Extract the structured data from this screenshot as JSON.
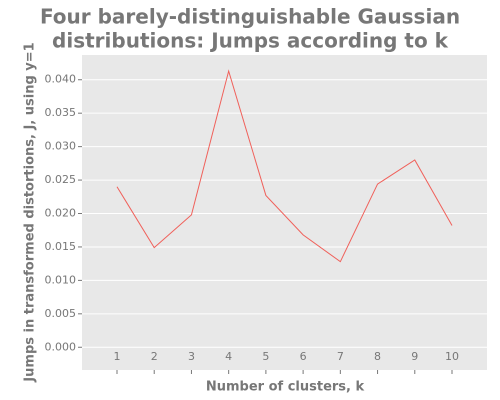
{
  "chart_data": {
    "type": "line",
    "title": [
      "Four barely-distinguishable Gaussian",
      "distributions: Jumps according to k"
    ],
    "x_label": "Number of clusters, k",
    "y_label": "Jumps in transformed distortions, J, using y=1",
    "x": [
      1,
      2,
      3,
      4,
      5,
      6,
      7,
      8,
      9,
      10
    ],
    "series": [
      {
        "color": "#f0605a",
        "values": [
          0.024,
          0.0149,
          0.0198,
          0.0413,
          0.0227,
          0.0168,
          0.0128,
          0.0244,
          0.028,
          0.0182
        ]
      }
    ],
    "xlim": [
      0.06,
      10.94
    ],
    "xticks": [
      1,
      2,
      3,
      4,
      5,
      6,
      7,
      8,
      9,
      10
    ],
    "ylim": [
      -0.0034,
      0.0437
    ],
    "yticks": [
      {
        "value": 0,
        "label": "0.000"
      },
      {
        "value": 0.005,
        "label": "0.005"
      },
      {
        "value": 0.01,
        "label": "0.010"
      },
      {
        "value": 0.015,
        "label": "0.015"
      },
      {
        "value": 0.02,
        "label": "0.020"
      },
      {
        "value": 0.025,
        "label": "0.025"
      },
      {
        "value": 0.03,
        "label": "0.030"
      },
      {
        "value": 0.035,
        "label": "0.035"
      },
      {
        "value": 0.04,
        "label": "0.040"
      }
    ],
    "grid": true
  }
}
